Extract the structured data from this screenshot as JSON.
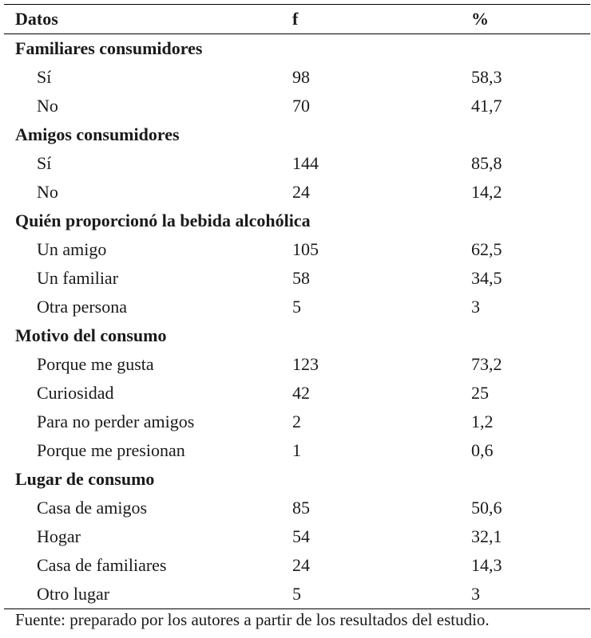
{
  "table": {
    "headers": {
      "label": "Datos",
      "f": "f",
      "pct": "%"
    },
    "groups": [
      {
        "title": "Familiares consumidores",
        "rows": [
          {
            "label": "Sí",
            "f": "98",
            "pct": "58,3"
          },
          {
            "label": "No",
            "f": "70",
            "pct": "41,7"
          }
        ]
      },
      {
        "title": "Amigos consumidores",
        "rows": [
          {
            "label": "Sí",
            "f": "144",
            "pct": "85,8"
          },
          {
            "label": "No",
            "f": "24",
            "pct": "14,2"
          }
        ]
      },
      {
        "title": "Quién proporcionó la bebida alcohólica",
        "rows": [
          {
            "label": "Un amigo",
            "f": "105",
            "pct": "62,5"
          },
          {
            "label": "Un familiar",
            "f": "58",
            "pct": "34,5"
          },
          {
            "label": "Otra persona",
            "f": "5",
            "pct": "3"
          }
        ]
      },
      {
        "title": "Motivo del consumo",
        "rows": [
          {
            "label": "Porque me gusta",
            "f": "123",
            "pct": "73,2"
          },
          {
            "label": "Curiosidad",
            "f": "42",
            "pct": "25"
          },
          {
            "label": "Para no perder amigos",
            "f": "2",
            "pct": "1,2"
          },
          {
            "label": "Porque me presionan",
            "f": "1",
            "pct": "0,6"
          }
        ]
      },
      {
        "title": "Lugar de consumo",
        "rows": [
          {
            "label": "Casa de amigos",
            "f": "85",
            "pct": "50,6"
          },
          {
            "label": "Hogar",
            "f": "54",
            "pct": "32,1"
          },
          {
            "label": "Casa de familiares",
            "f": "24",
            "pct": "14,3"
          },
          {
            "label": "Otro lugar",
            "f": "5",
            "pct": "3"
          }
        ]
      }
    ]
  },
  "footer": {
    "note": "Fuente: preparado por los autores a partir de los resultados del estudio."
  }
}
